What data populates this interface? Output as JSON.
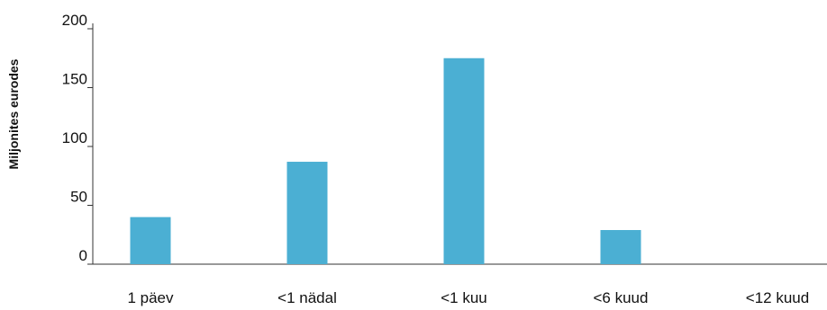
{
  "chart_data": {
    "type": "bar",
    "title": "",
    "xlabel": "",
    "ylabel": "Miljonites eurodes",
    "categories": [
      "1 päev",
      "<1 nädal",
      "<1 kuu",
      "<6 kuud",
      "<12 kuud"
    ],
    "values": [
      40,
      87,
      175,
      29,
      0
    ],
    "ylim": [
      0,
      200
    ],
    "yticks": [
      0,
      50,
      100,
      150,
      200
    ],
    "grid": false,
    "bar_color": "#4bafd3",
    "axis_color": "#333333"
  }
}
